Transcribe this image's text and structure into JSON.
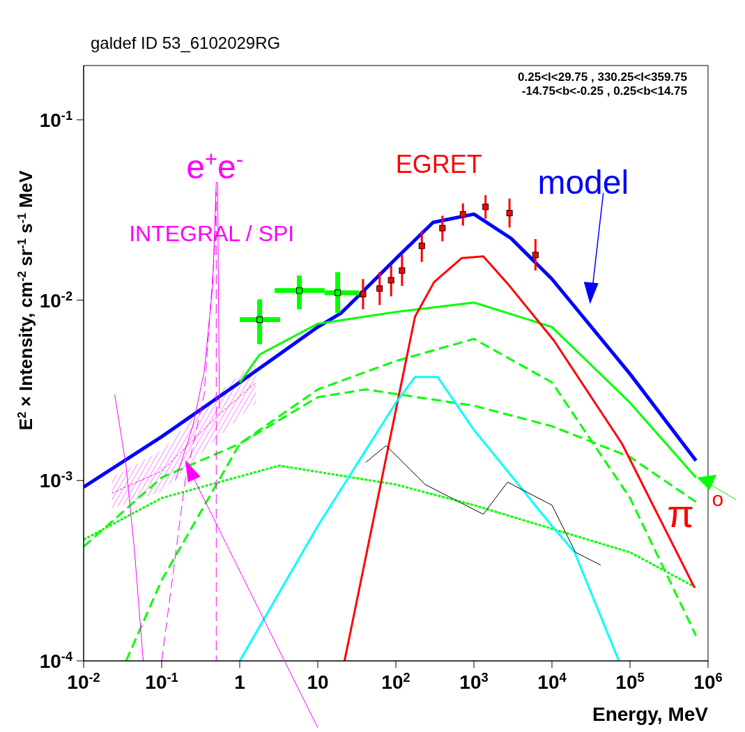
{
  "chart_data": {
    "type": "line",
    "title": "galdef ID 53_6102029RG",
    "xlabel": "Energy, MeV",
    "ylabel": "E$^{2}$ × Intensity, cm$^{-2}$ sr$^{-1}$ s$^{-1}$ MeV",
    "log": "xy",
    "grid": false,
    "legend": false,
    "xlim": [
      0.01,
      1000000
    ],
    "ylim": [
      0.0001,
      0.2
    ],
    "xticks": [
      {
        "value": 0.01,
        "label": "10$^{-2}$"
      },
      {
        "value": 0.1,
        "label": "10$^{-1}$"
      },
      1,
      10,
      {
        "value": 100,
        "label": "10$^{2}$"
      },
      {
        "value": 1000,
        "label": "10$^{3}$"
      },
      {
        "value": 10000,
        "label": "10$^{4}$"
      },
      {
        "value": 100000,
        "label": "10$^{5}$"
      },
      {
        "value": 1000000,
        "label": "10$^{6}$"
      }
    ],
    "yticks": [
      {
        "value": 0.0001,
        "label": "10$^{-4}$"
      },
      {
        "value": 0.001,
        "label": "10$^{-3}$"
      },
      {
        "value": 0.01,
        "label": "10$^{-2}$"
      },
      {
        "value": 0.1,
        "label": "10$^{-1}$"
      }
    ],
    "annotations": [
      "0.25<l<29.75 , 330.25<l<359.75",
      "-14.75<b<-0.25 , 0.25<b<14.75",
      "e$^{+}$e$^{-}$",
      "INTEGRAL / SPI",
      "EGRET",
      "model",
      "π",
      "o"
    ],
    "series": [
      {
        "color": "#0000ff",
        "line_style": "solid",
        "x": [
          0.01,
          0.1,
          1,
          10,
          20,
          100,
          300,
          1000,
          3000,
          10000,
          100000,
          700000
        ],
        "values": [
          0.00092,
          0.00175,
          0.0035,
          0.0071,
          0.0085,
          0.017,
          0.027,
          0.03,
          0.022,
          0.0131,
          0.0039,
          0.00129
        ]
      },
      {
        "type": "line",
        "color": "#00ff00",
        "line_style": "solid",
        "x": [
          1,
          1.8,
          10,
          100,
          1000,
          10000,
          100000,
          700000
        ],
        "values": [
          0.0035,
          0.005,
          0.0074,
          0.0086,
          0.0097,
          0.0071,
          0.0027,
          0.00104
        ]
      },
      {
        "type": "line",
        "color": "#00ff00",
        "line_style": "dashed",
        "x": [
          0.035,
          0.1,
          1,
          10,
          100,
          1000,
          10000,
          100000,
          700000
        ],
        "values": [
          0.0001,
          0.00028,
          0.0016,
          0.0032,
          0.0046,
          0.0061,
          0.0035,
          0.0008,
          0.000138
        ]
      },
      {
        "type": "line",
        "color": "#00ff00",
        "line_style": "dashed",
        "x": [
          0.01,
          0.1,
          1,
          10,
          41,
          1000,
          10000,
          100000,
          700000
        ],
        "values": [
          0.00043,
          0.00104,
          0.0016,
          0.0029,
          0.0032,
          0.0026,
          0.002,
          0.00135,
          0.00076
        ]
      },
      {
        "type": "line",
        "color": "#00ff00",
        "line_style": "dotted",
        "x": [
          0.01,
          0.1,
          3.2,
          100,
          1000,
          10000,
          100000,
          700000
        ],
        "values": [
          0.00047,
          0.0008,
          0.00121,
          0.00095,
          0.00073,
          0.00054,
          0.0004,
          0.000255
        ]
      },
      {
        "type": "line",
        "color": "#ff0000",
        "line_style": "solid",
        "x": [
          22,
          176,
          309,
          695,
          1320,
          2860,
          10600,
          79000,
          670000
        ],
        "values": [
          0.0001,
          0.0081,
          0.0126,
          0.0171,
          0.0175,
          0.012,
          0.00597,
          0.0016,
          0.000255
        ]
      },
      {
        "type": "line",
        "color": "#00ffff",
        "line_style": "solid",
        "x": [
          1,
          10,
          100,
          176,
          343,
          1000,
          10000,
          19500,
          72000
        ],
        "values": [
          0.0001,
          0.00056,
          0.0027,
          0.00375,
          0.00375,
          0.00191,
          0.00056,
          0.0004,
          0.0001
        ]
      },
      {
        "type": "line",
        "color": "#000000",
        "line_style": "solid",
        "x": [
          41,
          75,
          238,
          1320,
          2700,
          10000,
          20000,
          42000
        ],
        "values": [
          0.00126,
          0.00156,
          0.00095,
          0.00065,
          0.00098,
          0.00073,
          0.0004,
          0.00034
        ]
      },
      {
        "type": "line",
        "color": "#ff00ff",
        "line_style": "solid",
        "x": [
          0.025,
          0.035,
          0.045,
          0.058
        ],
        "values": [
          0.003,
          0.0012,
          0.0004,
          0.0001
        ]
      },
      {
        "type": "line",
        "color": "#ff00ff",
        "line_style": "solid",
        "x": [
          0.15,
          0.25,
          0.35,
          0.45,
          0.5,
          0.52,
          0.55
        ],
        "values": [
          0.001,
          0.002,
          0.004,
          0.012,
          0.045,
          0.045,
          0.0025
        ]
      },
      {
        "type": "line",
        "color": "#ff00ff",
        "line_style": "dashed",
        "x": [
          0.1,
          0.2,
          0.35,
          0.48,
          0.5,
          0.5
        ],
        "values": [
          0.0001,
          0.001,
          0.003,
          0.02,
          0.04,
          0.0001
        ]
      },
      {
        "type": "line",
        "color": "#ff00ff",
        "line_style": "dotted",
        "x": [
          0.023,
          0.1,
          0.5,
          1.6
        ],
        "values": [
          0.00085,
          0.00113,
          0.00225,
          0.0035
        ],
        "lower": [
          0.0007,
          0.00087,
          0.0017,
          0.0027
        ],
        "upper": [
          0.00104,
          0.00147,
          0.003,
          0.0046
        ]
      },
      {
        "type": "scatter",
        "color": "#00ff00",
        "marker": "square",
        "x": [
          1.8,
          5.8,
          18
        ],
        "values": [
          0.0078,
          0.0113,
          0.011
        ],
        "errors": [
          [
            0.0057,
            0.0101
          ],
          [
            0.0089,
            0.0137
          ],
          [
            0.0085,
            0.0143
          ]
        ],
        "xerrors": [
          [
            1,
            3.3
          ],
          [
            2.8,
            12.2
          ],
          [
            12.2,
            33.6
          ]
        ]
      },
      {
        "type": "scatter",
        "color": "#ff0000",
        "marker": "square",
        "x": [
          38,
          62,
          87,
          120,
          215,
          395,
          724,
          1410,
          2860,
          6150
        ],
        "values": [
          0.0108,
          0.0116,
          0.0129,
          0.0146,
          0.02,
          0.0251,
          0.0299,
          0.0329,
          0.0304,
          0.0178
        ],
        "errors": [
          [
            0.0089,
            0.0131
          ],
          [
            0.0094,
            0.0143
          ],
          [
            0.0105,
            0.0156
          ],
          [
            0.012,
            0.0178
          ],
          [
            0.0163,
            0.0242
          ],
          [
            0.0212,
            0.0294
          ],
          [
            0.0259,
            0.0344
          ],
          [
            0.0283,
            0.0382
          ],
          [
            0.0253,
            0.0366
          ],
          [
            0.0146,
            0.0218
          ]
        ]
      }
    ]
  }
}
